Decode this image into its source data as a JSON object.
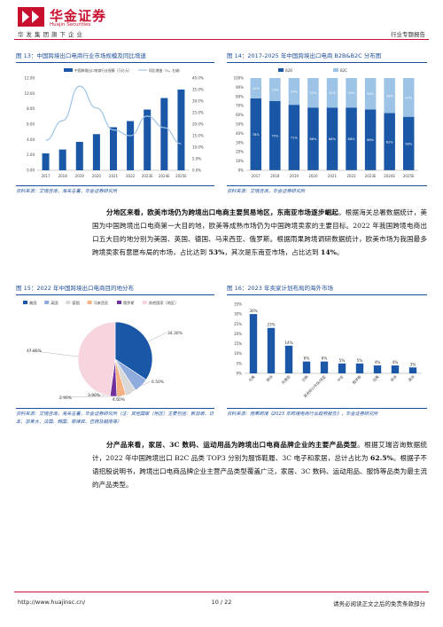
{
  "header": {
    "brand_cn": "华金证券",
    "brand_en": "Huajin Securities",
    "brand_sub": "华发集团旗下企业",
    "report_type": "行业专题报告"
  },
  "fig13": {
    "title": "图 13：中国跨境出口电商行业市场规模及同比增速",
    "source": "资料来源：艾瑞咨询，海关总署，华金证券研究所",
    "chart_data": {
      "type": "bar",
      "categories": [
        "2017",
        "2018",
        "2019",
        "2020",
        "2021",
        "2022",
        "2023E",
        "2024E",
        "2025E"
      ],
      "series": [
        {
          "name": "中国跨境出口电商行业规模（万亿元）",
          "values": [
            2.2,
            2.7,
            3.7,
            4.7,
            5.6,
            6.4,
            7.9,
            9.4,
            10.5
          ],
          "axis": "left"
        },
        {
          "name": "同比增速（%，右轴）",
          "values": [
            13.0,
            21.5,
            36.5,
            27.0,
            17.5,
            15.0,
            23.5,
            18.5,
            11.5
          ],
          "axis": "right"
        }
      ],
      "ylim": [
        0,
        12
      ],
      "yticks": [
        "0.00",
        "2.00",
        "4.00",
        "6.00",
        "8.00",
        "10.00",
        "12.00"
      ],
      "y2lim": [
        0,
        40
      ],
      "y2ticks": [
        "0.0%",
        "5.0%",
        "10.0%",
        "15.0%",
        "20.0%",
        "25.0%",
        "30.0%",
        "35.0%",
        "40.0%"
      ],
      "colors": {
        "bar": "#1a57a6",
        "line": "#9dc3e6"
      }
    }
  },
  "fig14": {
    "title": "图 14：2017-2025 年中国跨境出口电商 B2B&B2C 分布图",
    "source": "资料来源：艾瑞咨询，华金证券研究所",
    "chart_data": {
      "type": "bar",
      "stacked": true,
      "categories": [
        "2017",
        "2018",
        "2019",
        "2020",
        "2021",
        "2022",
        "2023E",
        "2024E",
        "2025E"
      ],
      "series": [
        {
          "name": "B2B",
          "values": [
            78,
            75,
            71,
            68,
            68,
            68,
            66,
            62,
            58
          ],
          "labels": [
            "78%",
            "75%",
            "71%",
            "68%",
            "68%",
            "68%",
            "66%",
            "62%",
            "58%"
          ],
          "color": "#1a57a6"
        },
        {
          "name": "B2C",
          "values": [
            22,
            25,
            29,
            32,
            32,
            32,
            34,
            38,
            42
          ],
          "labels": [
            "22%",
            "25%",
            "29%",
            "32%",
            "32%",
            "32%",
            "34%",
            "38%",
            "42%"
          ],
          "color": "#9dc3e6"
        }
      ],
      "ylim": [
        0,
        100
      ],
      "yticks": [
        "0%",
        "10%",
        "20%",
        "30%",
        "40%",
        "50%",
        "60%",
        "70%",
        "80%",
        "90%",
        "100%"
      ]
    }
  },
  "paragraph1": {
    "lead": "分地区来看，欧美市场仍为跨境出口电商主要贸易地区，东南亚市场逐步崛起",
    "text1": "。根据海关总署数据统计，美国为中国跨境出口电商第一大目的地，欧美等成熟市场仍为中国跨境卖家的主要目标。2022 年我国跨境电商出口五大目的地分别为美国、英国、德国、马来西亚、俄罗斯。根据雨果跨境调研数据统计，欧美市场为我国最多跨境卖家有意愿布局的市场，占比达到 ",
    "num1": "53%",
    "text2": "，其次是东南亚市场，占比达到 ",
    "num2": "14%",
    "text3": "。"
  },
  "fig15": {
    "title": "图 15：2022 年中国跨境出口电商目的地分布",
    "source": "资料来源：艾瑞咨询，海关总署，华金证券研究所（注：其他国家（地区）主要包括：新加坡、日本、加拿大、法国、韩国、菲律宾、巴西及越南等）",
    "chart_data": {
      "type": "pie",
      "series": [
        {
          "name": "美国",
          "value": 34.3,
          "label": "34.30%",
          "color": "#1a57a6"
        },
        {
          "name": "英国",
          "value": 6.5,
          "label": "6.50%",
          "color": "#8faadc"
        },
        {
          "name": "德国",
          "value": 4.6,
          "label": "4.60%",
          "color": "#d9d9d9"
        },
        {
          "name": "马来西亚",
          "value": 3.9,
          "label": "3.90%",
          "color": "#f4b183"
        },
        {
          "name": "俄罗斯",
          "value": 2.9,
          "label": "2.90%",
          "color": "#7030a0"
        },
        {
          "name": "其他国家（地区）",
          "value": 47.8,
          "label": "47.80%",
          "color": "#f6d5de"
        }
      ]
    }
  },
  "fig16": {
    "title": "图 16：2023 年卖家计划布局的海外市场",
    "source": "资料来源：雨果跨境《2023 年跨境电商行业趋势报告》，华金证券研究所",
    "chart_data": {
      "type": "bar",
      "categories": [
        "北美",
        "欧洲",
        "东南亚",
        "日韩",
        "其他新兴市场/待定",
        "中东",
        "俄罗斯",
        "拉美",
        "非洲",
        "澳洲"
      ],
      "values": [
        30,
        23,
        14,
        6,
        6,
        5,
        5,
        4,
        4,
        3
      ],
      "labels": [
        "30%",
        "23%",
        "14%",
        "6%",
        "6%",
        "5%",
        "5%",
        "4%",
        "4%",
        "3%"
      ],
      "ylim": [
        0,
        35
      ],
      "yticks": [
        "0%",
        "5%",
        "10%",
        "15%",
        "20%",
        "25%",
        "30%",
        "35%"
      ],
      "color": "#1a57a6"
    }
  },
  "paragraph2": {
    "lead": "分产品来看，家居、3C 数码、运动用品为跨境出口电商品牌企业的主要产品类型",
    "text1": "。根据艾瑞咨询数据统计，2022 年中国跨境出口 B2C 品类 TOP3 分别为服饰鞋履、3C 电子和家居，总计占比为 ",
    "num1": "62.5%",
    "text2": "。根据子不语招股说明书，跨境出口电商品牌企业主营产品类型覆盖广泛，家居、3C 数码、运动用品、服饰等品类为最主流的产品类型。"
  },
  "footer": {
    "url": "http://www.huajinsc.cn/",
    "page": "10 / 22",
    "disclaimer": "请务必阅读正文之后的免责条款部分"
  }
}
